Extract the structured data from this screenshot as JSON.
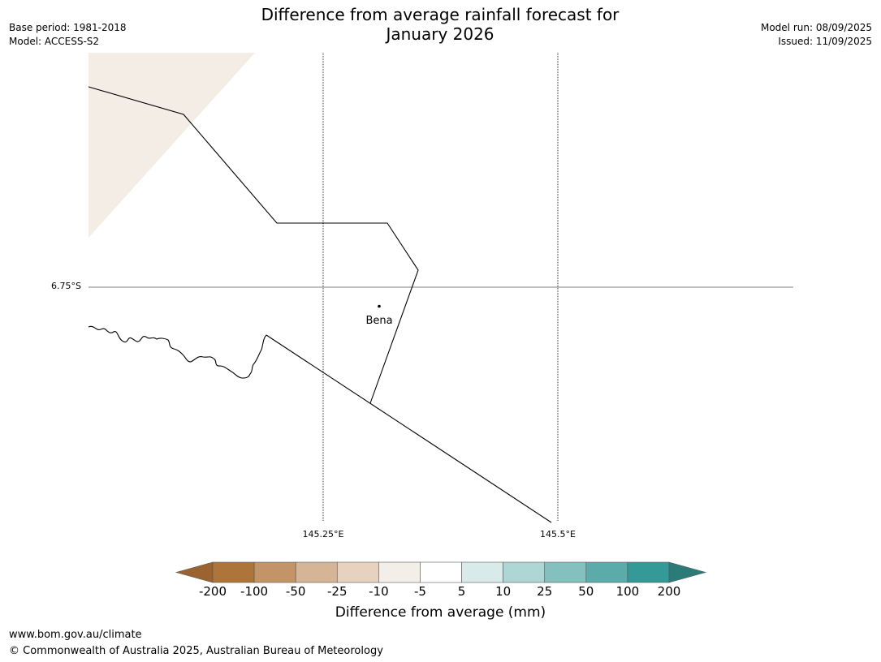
{
  "header": {
    "title_line1": "Difference from average rainfall forecast for",
    "title_line2": "January 2026",
    "base_period": "Base period: 1981-2018",
    "model": "Model: ACCESS-S2",
    "model_run": "Model run: 08/09/2025",
    "issued": "Issued: 11/09/2025"
  },
  "map": {
    "lat_label": "6.75°S",
    "lon_labels": [
      "145.25°E",
      "145.5°E"
    ],
    "place": {
      "name": "Bena"
    },
    "fill_colors": {
      "land_anomaly": "#f3ede6",
      "outline": "#000000"
    }
  },
  "colorbar": {
    "label": "Difference from average (mm)",
    "ticks": [
      "-200",
      "-100",
      "-50",
      "-25",
      "-10",
      "-5",
      "5",
      "10",
      "25",
      "50",
      "100",
      "200"
    ],
    "colors": [
      "#9c6330",
      "#ae753b",
      "#c39467",
      "#d5b595",
      "#e7d2bf",
      "#f4eee8",
      "#ffffff",
      "#d8eaea",
      "#add6d5",
      "#84c0bd",
      "#5babab",
      "#349a97",
      "#2b7c78"
    ]
  },
  "footer": {
    "url": "www.bom.gov.au/climate",
    "copyright": "© Commonwealth of Australia 2025, Australian Bureau of Meteorology"
  }
}
